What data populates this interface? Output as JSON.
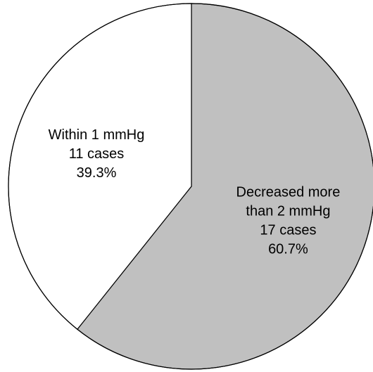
{
  "chart_data": {
    "type": "pie",
    "start_angle": "12 o'clock",
    "direction": "clockwise",
    "slices": [
      {
        "lines": [
          "Decreased more",
          "than 2 mmHg",
          "17 cases",
          "60.7%"
        ],
        "value": 17,
        "percent": 60.7,
        "color": "#c0c0c0"
      },
      {
        "lines": [
          "Within 1 mmHg",
          "11 cases",
          "39.3%"
        ],
        "value": 11,
        "percent": 39.3,
        "color": "#ffffff"
      }
    ],
    "outline_color": "#000000"
  }
}
